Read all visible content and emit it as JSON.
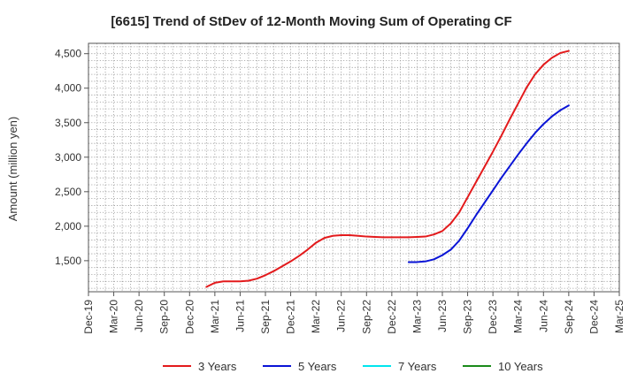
{
  "chart_data": {
    "type": "line",
    "title": "[6615]  Trend of StDev of 12-Month Moving Sum of Operating CF",
    "ylabel": "Amount (million yen)",
    "xlabel": "",
    "ylim": [
      1050,
      4650
    ],
    "yticks": [
      1500,
      2000,
      2500,
      3000,
      3500,
      4000,
      4500
    ],
    "ytick_labels": [
      "1,500",
      "2,000",
      "2,500",
      "3,000",
      "3,500",
      "4,000",
      "4,500"
    ],
    "x_range": [
      "Dec-19",
      "Mar-25"
    ],
    "xtick_labels": [
      "Dec-19",
      "Mar-20",
      "Jun-20",
      "Sep-20",
      "Dec-20",
      "Mar-21",
      "Jun-21",
      "Sep-21",
      "Dec-21",
      "Mar-22",
      "Jun-22",
      "Sep-22",
      "Dec-22",
      "Mar-23",
      "Jun-23",
      "Sep-23",
      "Dec-23",
      "Mar-24",
      "Jun-24",
      "Sep-24",
      "Dec-24",
      "Mar-25"
    ],
    "grid": true,
    "legend_position": "bottom",
    "series": [
      {
        "name": "3 Years",
        "color": "#e31a1c",
        "x": [
          "Feb-21",
          "Mar-21",
          "Apr-21",
          "May-21",
          "Jun-21",
          "Jul-21",
          "Aug-21",
          "Sep-21",
          "Oct-21",
          "Nov-21",
          "Dec-21",
          "Jan-22",
          "Feb-22",
          "Mar-22",
          "Apr-22",
          "May-22",
          "Jun-22",
          "Jul-22",
          "Aug-22",
          "Sep-22",
          "Oct-22",
          "Nov-22",
          "Dec-22",
          "Jan-23",
          "Feb-23",
          "Mar-23",
          "Apr-23",
          "May-23",
          "Jun-23",
          "Jul-23",
          "Aug-23",
          "Sep-23",
          "Oct-23",
          "Nov-23",
          "Dec-23",
          "Jan-24",
          "Feb-24",
          "Mar-24",
          "Apr-24",
          "May-24",
          "Jun-24",
          "Jul-24",
          "Aug-24",
          "Sep-24"
        ],
        "values": [
          1120,
          1180,
          1200,
          1200,
          1200,
          1210,
          1240,
          1290,
          1350,
          1420,
          1490,
          1570,
          1660,
          1760,
          1830,
          1860,
          1870,
          1870,
          1860,
          1850,
          1845,
          1840,
          1840,
          1840,
          1840,
          1845,
          1850,
          1880,
          1930,
          2040,
          2200,
          2420,
          2640,
          2860,
          3080,
          3310,
          3550,
          3780,
          4010,
          4200,
          4340,
          4440,
          4510,
          4540
        ]
      },
      {
        "name": "5 Years",
        "color": "#0a14d6",
        "x": [
          "Feb-23",
          "Mar-23",
          "Apr-23",
          "May-23",
          "Jun-23",
          "Jul-23",
          "Aug-23",
          "Sep-23",
          "Oct-23",
          "Nov-23",
          "Dec-23",
          "Jan-24",
          "Feb-24",
          "Mar-24",
          "Apr-24",
          "May-24",
          "Jun-24",
          "Jul-24",
          "Aug-24",
          "Sep-24"
        ],
        "values": [
          1480,
          1480,
          1490,
          1520,
          1580,
          1660,
          1790,
          1970,
          2160,
          2340,
          2520,
          2700,
          2870,
          3040,
          3200,
          3350,
          3480,
          3590,
          3680,
          3750
        ]
      },
      {
        "name": "7 Years",
        "color": "#00e5ee",
        "x": [],
        "values": []
      },
      {
        "name": "10 Years",
        "color": "#1a8a1a",
        "x": [],
        "values": []
      }
    ]
  }
}
